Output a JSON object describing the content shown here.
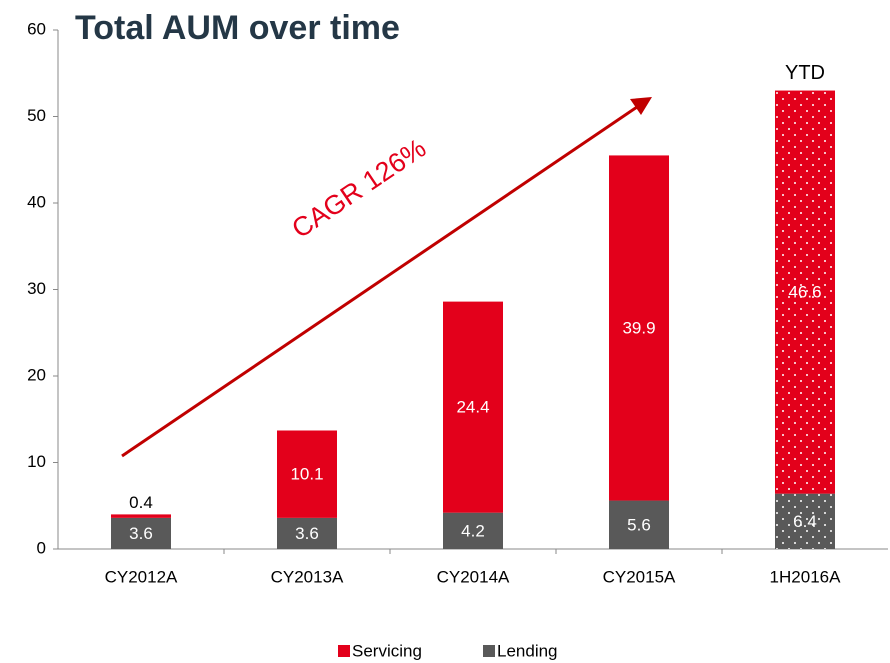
{
  "chart_data": {
    "type": "stacked_bar",
    "title": "Total AUM over time",
    "categories": [
      "CY2012A",
      "CY2013A",
      "CY2014A",
      "CY2015A",
      "1H2016A"
    ],
    "series": [
      {
        "name": "Servicing",
        "color": "#e3001b",
        "values": [
          0.4,
          10.1,
          24.4,
          39.9,
          46.6
        ]
      },
      {
        "name": "Lending",
        "color": "#595959",
        "values": [
          3.6,
          3.6,
          4.2,
          5.6,
          6.4
        ]
      }
    ],
    "dotted": [
      false,
      false,
      false,
      false,
      true
    ],
    "ylim": [
      0,
      60
    ],
    "yticks": [
      0,
      10,
      20,
      30,
      40,
      50,
      60
    ],
    "annotations": [
      "CAGR 126%",
      "YTD"
    ],
    "legend": "bottom"
  }
}
